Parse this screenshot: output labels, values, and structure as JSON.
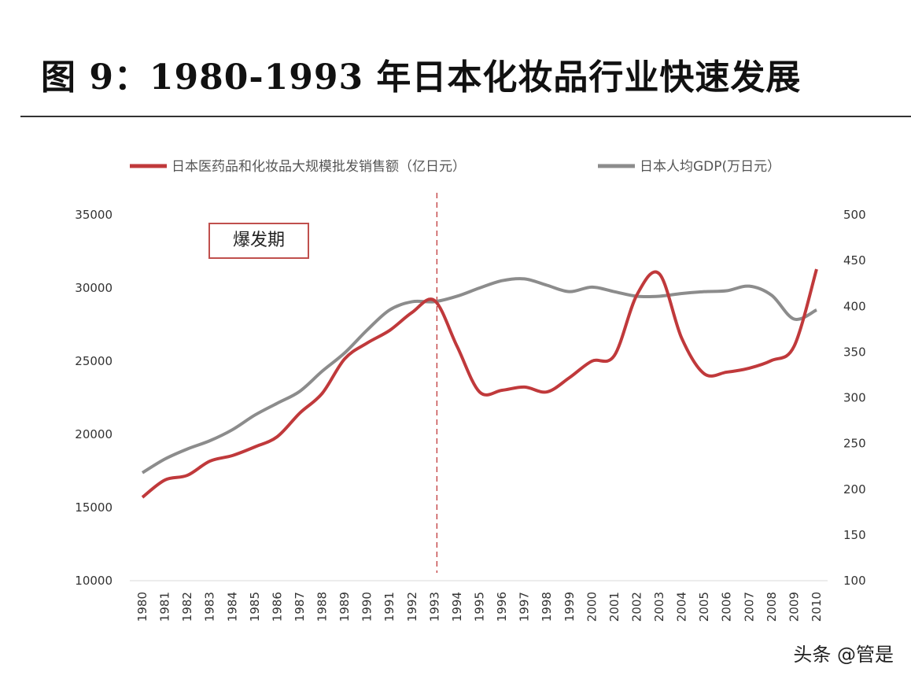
{
  "title": "图 9：1980-1993 年日本化妆品行业快速发展",
  "watermark": "头条 @管是",
  "chart_data": {
    "type": "line",
    "title": "图 9：1980-1993 年日本化妆品行业快速发展",
    "categories": [
      "1980",
      "1981",
      "1982",
      "1983",
      "1984",
      "1985",
      "1986",
      "1987",
      "1988",
      "1989",
      "1990",
      "1991",
      "1992",
      "1993",
      "1994",
      "1995",
      "1996",
      "1997",
      "1998",
      "1999",
      "2000",
      "2001",
      "2002",
      "2003",
      "2004",
      "2005",
      "2006",
      "2007",
      "2008",
      "2009",
      "2010"
    ],
    "series": [
      {
        "name": "日本医药品和化妆品大规模批发销售额（亿日元）",
        "axis": "left",
        "color": "#c0393b",
        "values": [
          15700,
          16880,
          17200,
          18170,
          18550,
          19140,
          19840,
          21450,
          22800,
          25160,
          26240,
          27100,
          28330,
          29140,
          26020,
          22900,
          23010,
          23230,
          22900,
          23870,
          25000,
          25380,
          29520,
          30970,
          26560,
          24140,
          24250,
          24520,
          25050,
          26020,
          31290
        ]
      },
      {
        "name": "日本人均GDP(万日元）",
        "axis": "right",
        "color": "#8c8c8c",
        "values": [
          218,
          233,
          244,
          253,
          265,
          281,
          294,
          307,
          329,
          349,
          374,
          396,
          405,
          405,
          411,
          420,
          428,
          430,
          423,
          416,
          421,
          416,
          411,
          411,
          414,
          416,
          417,
          422,
          412,
          386,
          396
        ]
      }
    ],
    "y_left": {
      "range": [
        10000,
        35000
      ],
      "ticks": [
        "10000",
        "15000",
        "20000",
        "25000",
        "30000",
        "35000"
      ]
    },
    "y_right": {
      "range": [
        100,
        500
      ],
      "ticks": [
        "100",
        "150",
        "200",
        "250",
        "300",
        "350",
        "400",
        "450",
        "500"
      ]
    },
    "vline": {
      "at": "1993",
      "style": "dashed",
      "color": "#c0393b"
    },
    "annotation": "爆发期",
    "legend_position": "top",
    "grid": false
  }
}
